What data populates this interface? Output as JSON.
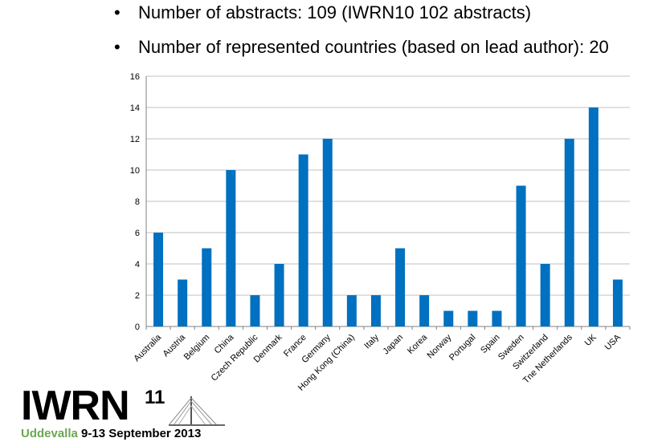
{
  "bullets": [
    {
      "symbol": "•",
      "text": "Number of abstracts: 109 (IWRN10 102 abstracts)"
    },
    {
      "symbol": "•",
      "text": "Number of represented countries (based on lead author): 20"
    }
  ],
  "logo": {
    "main": "IWRN",
    "superscript": "11",
    "place": "Uddevalla",
    "dates": " 9-13 September 2013"
  },
  "colors": {
    "bar": "#0070c0",
    "grid": "#c0c0c0",
    "logo_green": "#6aa84f"
  },
  "chart_data": {
    "type": "bar",
    "title": "",
    "xlabel": "",
    "ylabel": "",
    "ylim": [
      0,
      16
    ],
    "yticks": [
      0,
      2,
      4,
      6,
      8,
      10,
      12,
      14,
      16
    ],
    "grid": true,
    "categories": [
      "Australia",
      "Austria",
      "Belgium",
      "China",
      "Czech Republic",
      "Denmark",
      "France",
      "Germany",
      "Hong Kong (China)",
      "Italy",
      "Japan",
      "Korea",
      "Norway",
      "Portugal",
      "Spain",
      "Sweden",
      "Switzerland",
      "Tne Netherlands",
      "UK",
      "USA"
    ],
    "values": [
      6,
      3,
      5,
      10,
      2,
      4,
      11,
      12,
      2,
      2,
      5,
      2,
      1,
      1,
      1,
      9,
      4,
      12,
      14,
      3
    ]
  }
}
